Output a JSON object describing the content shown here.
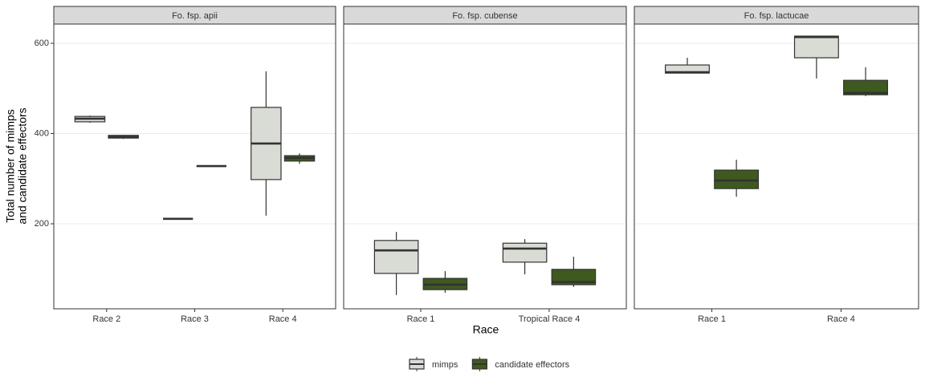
{
  "chart_data": {
    "type": "box",
    "ylabel": [
      "Total number of mimps",
      "and candidate effectors"
    ],
    "xlabel": "Race",
    "ylim": [
      11.6,
      642.7
    ],
    "yticks": [
      200,
      400,
      600
    ],
    "grid": true,
    "legend": "bottom",
    "series": [
      {
        "name": "mimps",
        "color": "#d9dcd5"
      },
      {
        "name": "candidate effectors",
        "color": "#3e5a1e"
      }
    ],
    "facets": [
      {
        "title": "Fo. fsp. apii",
        "categories": [
          "Race 2",
          "Race 3",
          "Race 4"
        ],
        "values": [
          [
            {
              "min": 424,
              "q1": 426,
              "median": 433,
              "q3": 438,
              "max": 440
            },
            {
              "min": 211,
              "q1": 211,
              "median": 211,
              "q3": 211,
              "max": 211
            },
            {
              "min": 218,
              "q1": 298,
              "median": 378,
              "q3": 458,
              "max": 538
            }
          ],
          [
            {
              "min": 388,
              "q1": 390,
              "median": 392,
              "q3": 396,
              "max": 397
            },
            {
              "min": 328,
              "q1": 328,
              "median": 328,
              "q3": 328,
              "max": 328
            },
            {
              "min": 333,
              "q1": 339,
              "median": 346,
              "q3": 351,
              "max": 356
            }
          ]
        ]
      },
      {
        "title": "Fo. fsp. cubense",
        "categories": [
          "Race 1",
          "Tropical Race 4"
        ],
        "values": [
          [
            {
              "min": 42,
              "q1": 90,
              "median": 141,
              "q3": 163,
              "max": 182
            },
            {
              "min": 88,
              "q1": 115,
              "median": 145,
              "q3": 157,
              "max": 166
            }
          ],
          [
            {
              "min": 47,
              "q1": 54,
              "median": 65,
              "q3": 79,
              "max": 95
            },
            {
              "min": 60,
              "q1": 65,
              "median": 71,
              "q3": 99,
              "max": 127
            }
          ]
        ]
      },
      {
        "title": "Fo. fsp. lactucae",
        "categories": [
          "Race 1",
          "Race 4"
        ],
        "values": [
          [
            {
              "min": 534,
              "q1": 534,
              "median": 536,
              "q3": 552,
              "max": 568
            },
            {
              "min": 522,
              "q1": 568,
              "median": 614,
              "q3": 616,
              "max": 616
            }
          ],
          [
            {
              "min": 260,
              "q1": 278,
              "median": 296,
              "q3": 319,
              "max": 342
            },
            {
              "min": 483,
              "q1": 486,
              "median": 490,
              "q3": 518,
              "max": 547
            }
          ]
        ]
      }
    ]
  }
}
